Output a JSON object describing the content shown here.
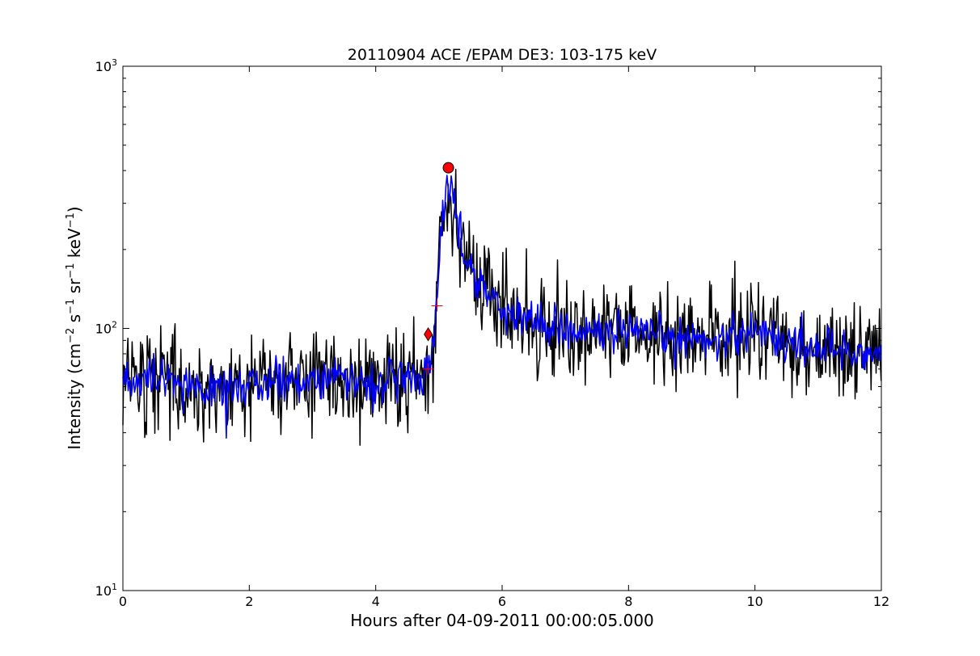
{
  "chart_data": {
    "type": "line",
    "title": "20110904 ACE /EPAM DE3: 103-175 keV",
    "xlabel": "Hours after 04-09-2011 00:00:05.000",
    "ylabel": {
      "prefix": "Intensity (cm",
      "sup1": "−2",
      "mid1": " s",
      "sup2": "−1",
      "mid2": " sr",
      "sup3": "−1",
      "mid3": " keV",
      "sup4": "−1",
      "suffix": ")"
    },
    "xlim": [
      0,
      12
    ],
    "ylim": [
      10,
      1000
    ],
    "yscale": "log",
    "grid": false,
    "x_ticks": [
      0,
      2,
      4,
      6,
      8,
      10,
      12
    ],
    "x_tick_labels": [
      "0",
      "2",
      "4",
      "6",
      "8",
      "10",
      "12"
    ],
    "y_ticks": [
      10,
      100,
      1000
    ],
    "y_tick_labels": [
      {
        "base": "10",
        "exp": "1"
      },
      {
        "base": "10",
        "exp": "2"
      },
      {
        "base": "10",
        "exp": "3"
      }
    ],
    "profile": {
      "x": [
        0,
        0.5,
        1.0,
        1.5,
        2.0,
        2.5,
        3.0,
        3.5,
        4.0,
        4.5,
        4.75,
        4.85,
        4.92,
        5.0,
        5.1,
        5.15,
        5.2,
        5.3,
        5.45,
        5.6,
        5.8,
        6.0,
        6.3,
        6.6,
        7.0,
        7.5,
        8.0,
        8.5,
        9.0,
        9.5,
        10.0,
        10.5,
        11.0,
        11.5,
        12.0
      ],
      "y": [
        62,
        63,
        60,
        58,
        61,
        63,
        65,
        64,
        62,
        63,
        66,
        72,
        90,
        190,
        310,
        360,
        340,
        250,
        185,
        150,
        135,
        120,
        110,
        105,
        100,
        97,
        95,
        93,
        90,
        92,
        100,
        88,
        85,
        82,
        80
      ]
    },
    "series": [
      {
        "color": "#000000",
        "noise": 0.22,
        "step_hours": 0.0133
      },
      {
        "color": "#0000ff",
        "noise": 0.09,
        "step_hours": 0.0167
      }
    ],
    "markers": [
      {
        "shape": "circle",
        "x": 5.15,
        "y": 410,
        "color": "#ff0000"
      },
      {
        "shape": "diamond",
        "x": 4.83,
        "y": 95,
        "color": "#ff0000"
      },
      {
        "shape": "plus",
        "x": 4.83,
        "y": 70,
        "color": "#ff0000"
      },
      {
        "shape": "plus",
        "x": 4.97,
        "y": 122,
        "color": "#ff0000"
      }
    ]
  }
}
